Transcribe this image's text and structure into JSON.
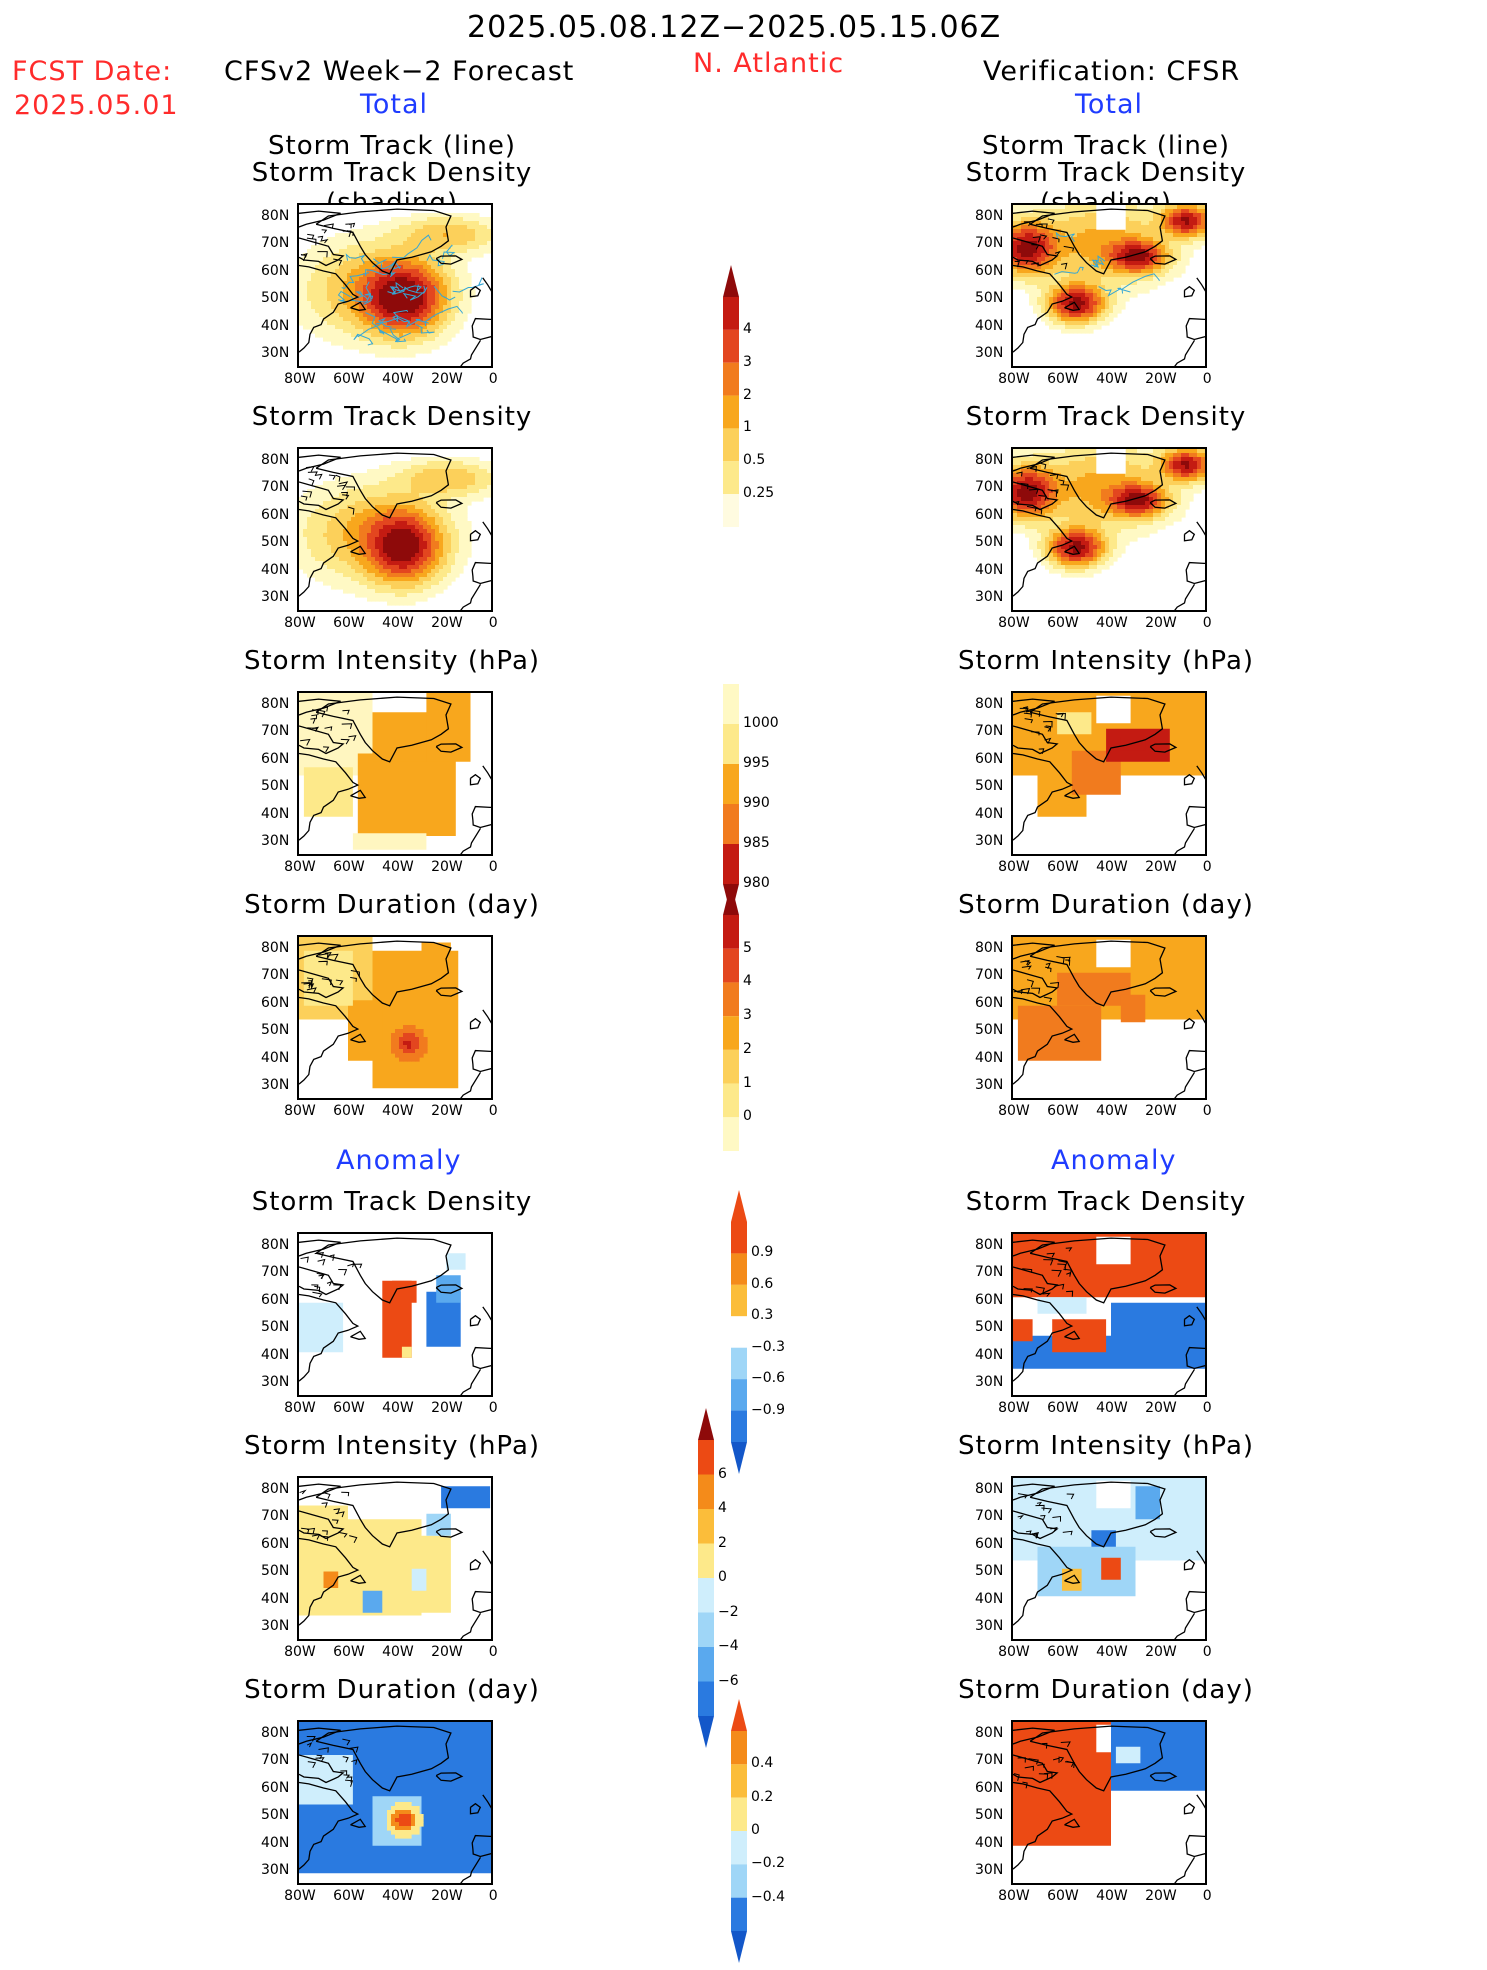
{
  "header": {
    "date_range": "2025.05.08.12Z−2025.05.15.06Z",
    "fcst_label": "FCST Date:",
    "fcst_date": "2025.05.01",
    "forecast_title": "CFSv2 Week−2 Forecast",
    "region": "N. Atlantic",
    "verification_title": "Verification: CFSR",
    "left_total": "Total",
    "right_total": "Total",
    "left_anomaly": "Anomaly",
    "right_anomaly": "Anomaly"
  },
  "panel_titles": {
    "track_line": "Storm Track (line)",
    "track_shading": "Storm Track Density (shading)",
    "track_density": "Storm Track Density",
    "intensity": "Storm Intensity (hPa)",
    "duration": "Storm Duration (day)"
  },
  "axes": {
    "lat_ticks": [
      "80N",
      "70N",
      "60N",
      "50N",
      "40N",
      "30N"
    ],
    "lon_ticks": [
      "80W",
      "60W",
      "40W",
      "20W",
      "0"
    ]
  },
  "colors": {
    "warm": [
      "#fff9c4",
      "#fde98a",
      "#fcd05a",
      "#f8a71d",
      "#f17b1e",
      "#e3461f",
      "#c41b12",
      "#8e0a0a"
    ],
    "anom_neg": [
      "#cfeefc",
      "#9fd6f7",
      "#5aa9ee",
      "#2a7ae0",
      "#1357c9"
    ],
    "anom_pos": [
      "#fde98a",
      "#fbbd3a",
      "#f48b1a",
      "#ec4a14",
      "#c41b12"
    ],
    "track_line": "#36a7d6"
  },
  "chart_data": [
    {
      "type": "heatmap",
      "name": "forecast_total_track_density_with_tracks",
      "region": "N. Atlantic",
      "lat_range": [
        25,
        85
      ],
      "lon_range": [
        -80,
        0
      ],
      "peak": {
        "lon": -38,
        "lat": 52
      }
    },
    {
      "type": "heatmap",
      "name": "forecast_total_track_density",
      "lat_range": [
        25,
        85
      ],
      "lon_range": [
        -80,
        0
      ],
      "peak": {
        "lon": -38,
        "lat": 50
      }
    },
    {
      "type": "heatmap",
      "name": "forecast_total_intensity",
      "units": "hPa",
      "lat_range": [
        25,
        85
      ],
      "lon_range": [
        -80,
        0
      ]
    },
    {
      "type": "heatmap",
      "name": "forecast_total_duration",
      "units": "day",
      "lat_range": [
        25,
        85
      ],
      "lon_range": [
        -80,
        0
      ],
      "peak": {
        "lon": -36,
        "lat": 48
      }
    },
    {
      "type": "heatmap",
      "name": "forecast_anom_track_density",
      "lat_range": [
        25,
        85
      ],
      "lon_range": [
        -80,
        0
      ]
    },
    {
      "type": "heatmap",
      "name": "forecast_anom_intensity",
      "units": "hPa",
      "lat_range": [
        25,
        85
      ],
      "lon_range": [
        -80,
        0
      ]
    },
    {
      "type": "heatmap",
      "name": "forecast_anom_duration",
      "units": "day",
      "lat_range": [
        25,
        85
      ],
      "lon_range": [
        -80,
        0
      ]
    },
    {
      "type": "heatmap",
      "name": "cfsr_total_track_density_with_tracks",
      "lat_range": [
        25,
        85
      ],
      "lon_range": [
        -80,
        0
      ]
    },
    {
      "type": "heatmap",
      "name": "cfsr_total_track_density",
      "lat_range": [
        25,
        85
      ],
      "lon_range": [
        -80,
        0
      ]
    },
    {
      "type": "heatmap",
      "name": "cfsr_total_intensity",
      "units": "hPa",
      "lat_range": [
        25,
        85
      ],
      "lon_range": [
        -80,
        0
      ]
    },
    {
      "type": "heatmap",
      "name": "cfsr_total_duration",
      "units": "day",
      "lat_range": [
        25,
        85
      ],
      "lon_range": [
        -80,
        0
      ]
    },
    {
      "type": "heatmap",
      "name": "cfsr_anom_track_density",
      "lat_range": [
        25,
        85
      ],
      "lon_range": [
        -80,
        0
      ]
    },
    {
      "type": "heatmap",
      "name": "cfsr_anom_intensity",
      "units": "hPa",
      "lat_range": [
        25,
        85
      ],
      "lon_range": [
        -80,
        0
      ]
    },
    {
      "type": "heatmap",
      "name": "cfsr_anom_duration",
      "units": "day",
      "lat_range": [
        25,
        85
      ],
      "lon_range": [
        -80,
        0
      ]
    }
  ],
  "colorbars": {
    "track_density": [
      "4",
      "3",
      "2",
      "1",
      "0.5",
      "0.25"
    ],
    "intensity": [
      "1000",
      "995",
      "990",
      "985",
      "980"
    ],
    "duration": [
      "5",
      "4",
      "3",
      "2",
      "1",
      "0"
    ],
    "anom_track_density": [
      "0.9",
      "0.6",
      "0.3",
      "−0.3",
      "−0.6",
      "−0.9"
    ],
    "anom_intensity": [
      "6",
      "4",
      "2",
      "0",
      "−2",
      "−4",
      "−6"
    ],
    "anom_duration": [
      "0.4",
      "0.2",
      "0",
      "−0.2",
      "−0.4"
    ]
  }
}
